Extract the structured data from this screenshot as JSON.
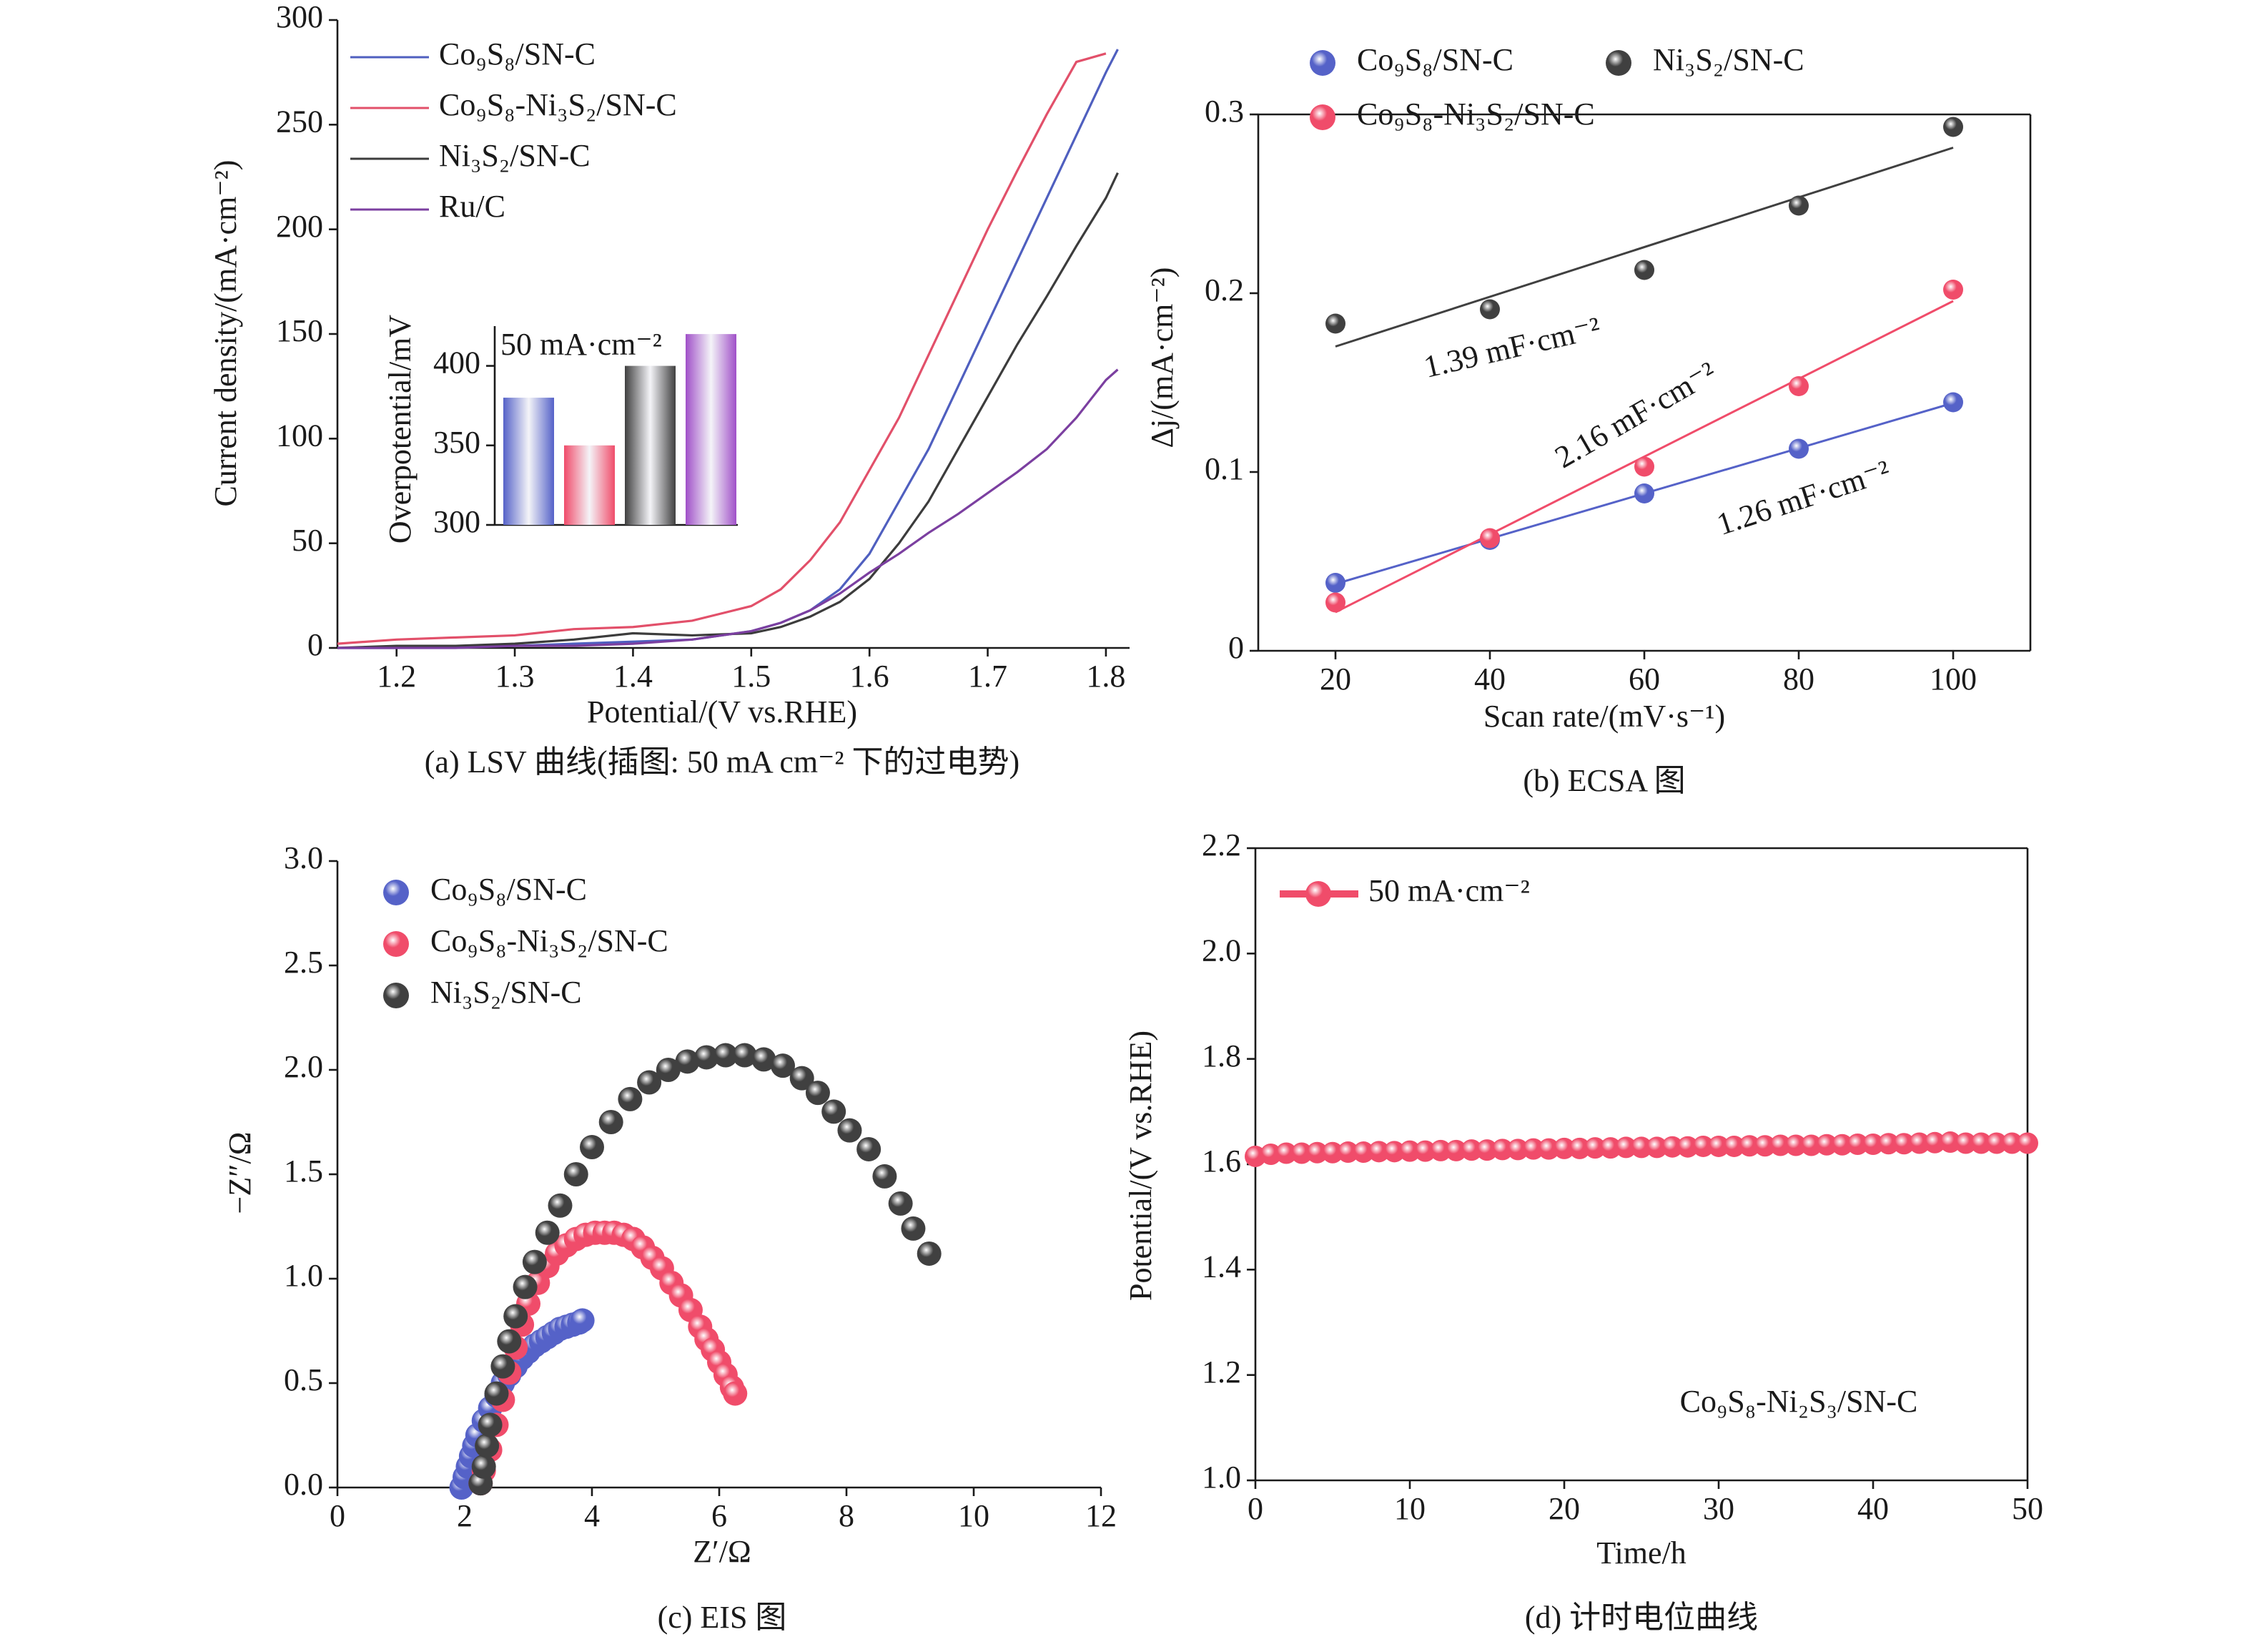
{
  "chart_data": [
    {
      "type": "line",
      "caption": "(a)  LSV 曲线(插图: 50 mA cm⁻² 下的过电势)",
      "xlabel": "Potential/(V vs.RHE)",
      "ylabel": "Current density/(mA·cm⁻²)",
      "x": [
        1.15,
        1.2,
        1.25,
        1.3,
        1.35,
        1.4,
        1.45,
        1.5,
        1.525,
        1.55,
        1.575,
        1.6,
        1.625,
        1.65,
        1.675,
        1.7,
        1.725,
        1.75,
        1.775,
        1.8,
        1.81
      ],
      "xlim": [
        1.15,
        1.82
      ],
      "xticks": [
        1.2,
        1.3,
        1.4,
        1.5,
        1.6,
        1.7,
        1.8
      ],
      "ylim": [
        0,
        300
      ],
      "yticks": [
        0,
        50,
        100,
        150,
        200,
        250,
        300
      ],
      "series": [
        {
          "name": "Co₉S₈/SN-C",
          "color": "#4f5fbf",
          "values": [
            0,
            0,
            1,
            1,
            2,
            3,
            4,
            8,
            12,
            18,
            28,
            45,
            70,
            95,
            125,
            155,
            185,
            215,
            245,
            275,
            286
          ]
        },
        {
          "name": "Co₉S₈-Ni₃S₂/SN-C",
          "color": "#e2506a",
          "values": [
            2,
            4,
            5,
            6,
            9,
            10,
            13,
            20,
            28,
            42,
            60,
            85,
            110,
            140,
            170,
            200,
            228,
            255,
            280,
            284,
            null
          ]
        },
        {
          "name": "Ni₃S₂/SN-C",
          "color": "#3c3c3c",
          "values": [
            0,
            1,
            1,
            2,
            4,
            7,
            6,
            7,
            10,
            15,
            22,
            33,
            50,
            70,
            95,
            120,
            145,
            168,
            192,
            215,
            227
          ]
        },
        {
          "name": "Ru/C",
          "color": "#7b3fa0",
          "values": [
            0,
            0,
            0,
            1,
            1,
            2,
            4,
            8,
            12,
            18,
            26,
            36,
            45,
            55,
            64,
            74,
            84,
            95,
            110,
            128,
            133
          ]
        }
      ]
    },
    {
      "type": "bar",
      "ylabel": "Overpotential/mV",
      "annotation": "50 mA·cm⁻²",
      "categories": [
        null,
        null,
        null,
        null
      ],
      "values": [
        380,
        350,
        400,
        420
      ],
      "colors": [
        "#5562c8",
        "#f04c6a",
        "#404040",
        "#a050c8"
      ],
      "ylim": [
        300,
        425
      ],
      "yticks": [
        300,
        350,
        400
      ]
    },
    {
      "type": "scatter",
      "fit": true,
      "caption": "(b) ECSA 图",
      "xlabel": "Scan rate/(mV·s⁻¹)",
      "ylabel": "Δj/(mA·cm⁻²)",
      "x": [
        20,
        40,
        60,
        80,
        100
      ],
      "xlim": [
        10,
        110
      ],
      "xticks": [
        20,
        40,
        60,
        80,
        100
      ],
      "ylim": [
        0,
        0.3
      ],
      "yticks": [
        0,
        0.1,
        0.2,
        0.3
      ],
      "series": [
        {
          "name": "Co₉S₈/SN-C",
          "color": "#5562c8",
          "values": [
            0.038,
            0.062,
            0.088,
            0.113,
            0.139
          ],
          "fit_label": "1.26 mF·cm⁻²"
        },
        {
          "name": "Ni₃S₂/SN-C",
          "color": "#404040",
          "values": [
            0.183,
            0.191,
            0.213,
            0.249,
            0.293
          ],
          "fit_label": "1.39 mF·cm⁻²"
        },
        {
          "name": "Co₉S₈-Ni₃S₂/SN-C",
          "color": "#f04c6a",
          "values": [
            0.027,
            0.063,
            0.103,
            0.148,
            0.202
          ],
          "fit_label": "2.16 mF·cm⁻²"
        }
      ]
    },
    {
      "type": "scatter",
      "caption": "(c) EIS 图",
      "xlabel": "Z′/Ω",
      "ylabel": "−Z″/Ω",
      "xlim": [
        0,
        12
      ],
      "xticks": [
        0,
        2,
        4,
        6,
        8,
        10,
        12
      ],
      "ylim": [
        0,
        3
      ],
      "yticks": [
        {
          "value": 0,
          "label": "0.0"
        },
        0.5,
        {
          "value": 1,
          "label": "1.0"
        },
        1.5,
        {
          "value": 2,
          "label": "2.0"
        },
        2.5,
        {
          "value": 3,
          "label": "3.0"
        }
      ],
      "series": [
        {
          "name": "Co₉S₈/SN-C",
          "color": "#5562c8",
          "x": [
            1.95,
            2.0,
            2.05,
            2.1,
            2.15,
            2.2,
            2.3,
            2.4,
            2.5,
            2.6,
            2.7,
            2.8,
            2.9,
            3.0,
            3.1,
            3.2,
            3.3,
            3.4,
            3.5,
            3.6,
            3.7,
            3.8,
            3.85
          ],
          "values": [
            0.0,
            0.05,
            0.1,
            0.15,
            0.2,
            0.25,
            0.32,
            0.38,
            0.44,
            0.5,
            0.54,
            0.58,
            0.62,
            0.65,
            0.68,
            0.7,
            0.72,
            0.74,
            0.76,
            0.77,
            0.78,
            0.79,
            0.8
          ]
        },
        {
          "name": "Co₉S₈-Ni₃S₂/SN-C",
          "color": "#f04c6a",
          "x": [
            2.25,
            2.3,
            2.4,
            2.5,
            2.6,
            2.7,
            2.8,
            2.9,
            3.0,
            3.15,
            3.3,
            3.45,
            3.6,
            3.75,
            3.9,
            4.05,
            4.2,
            4.35,
            4.5,
            4.65,
            4.8,
            4.95,
            5.1,
            5.25,
            5.4,
            5.55,
            5.7,
            5.8,
            5.9,
            6.0,
            6.1,
            6.2,
            6.25
          ],
          "values": [
            0.02,
            0.08,
            0.18,
            0.3,
            0.42,
            0.55,
            0.67,
            0.78,
            0.88,
            0.98,
            1.06,
            1.12,
            1.16,
            1.19,
            1.21,
            1.22,
            1.22,
            1.22,
            1.21,
            1.19,
            1.15,
            1.1,
            1.05,
            0.98,
            0.92,
            0.85,
            0.77,
            0.71,
            0.66,
            0.6,
            0.54,
            0.48,
            0.45
          ]
        },
        {
          "name": "Ni₃S₂/SN-C",
          "color": "#404040",
          "x": [
            2.25,
            2.3,
            2.35,
            2.4,
            2.5,
            2.6,
            2.7,
            2.8,
            2.95,
            3.1,
            3.3,
            3.5,
            3.75,
            4.0,
            4.3,
            4.6,
            4.9,
            5.2,
            5.5,
            5.8,
            6.1,
            6.4,
            6.7,
            7.0,
            7.3,
            7.55,
            7.8,
            8.05,
            8.35,
            8.6,
            8.85,
            9.05,
            9.3
          ],
          "values": [
            0.02,
            0.1,
            0.2,
            0.3,
            0.45,
            0.58,
            0.7,
            0.82,
            0.96,
            1.08,
            1.22,
            1.35,
            1.5,
            1.63,
            1.75,
            1.86,
            1.94,
            2.0,
            2.04,
            2.06,
            2.07,
            2.07,
            2.05,
            2.02,
            1.96,
            1.89,
            1.8,
            1.71,
            1.62,
            1.49,
            1.36,
            1.24,
            1.12
          ]
        }
      ]
    },
    {
      "type": "line",
      "markers": true,
      "caption": "(d) 计时电位曲线",
      "xlabel": "Time/h",
      "ylabel": "Potential/(V vs.RHE)",
      "annotation": "Co₉S₈-Ni₂S₃/SN-C",
      "x": [
        0,
        1,
        2,
        3,
        4,
        5,
        6,
        7,
        8,
        9,
        10,
        11,
        12,
        13,
        14,
        15,
        16,
        17,
        18,
        19,
        20,
        21,
        22,
        23,
        24,
        25,
        26,
        27,
        28,
        29,
        30,
        31,
        32,
        33,
        34,
        35,
        36,
        37,
        38,
        39,
        40,
        41,
        42,
        43,
        44,
        45,
        46,
        47,
        48,
        49,
        50
      ],
      "xlim": [
        0,
        50
      ],
      "xticks": [
        0,
        10,
        20,
        30,
        40,
        50
      ],
      "ylim": [
        1,
        2.2
      ],
      "yticks": [
        {
          "value": 1,
          "label": "1.0"
        },
        1.2,
        1.4,
        1.6,
        1.8,
        {
          "value": 2,
          "label": "2.0"
        },
        2.2
      ],
      "series": [
        {
          "name": "50 mA·cm⁻²",
          "color": "#f04c6a",
          "values": [
            1.615,
            1.619,
            1.621,
            1.621,
            1.622,
            1.622,
            1.623,
            1.623,
            1.624,
            1.624,
            1.625,
            1.625,
            1.626,
            1.626,
            1.627,
            1.627,
            1.628,
            1.628,
            1.629,
            1.629,
            1.63,
            1.63,
            1.631,
            1.631,
            1.632,
            1.632,
            1.632,
            1.633,
            1.633,
            1.634,
            1.634,
            1.634,
            1.635,
            1.635,
            1.636,
            1.636,
            1.636,
            1.637,
            1.637,
            1.638,
            1.638,
            1.639,
            1.639,
            1.64,
            1.641,
            1.642,
            1.64,
            1.64,
            1.64,
            1.64,
            1.64
          ]
        }
      ]
    }
  ]
}
